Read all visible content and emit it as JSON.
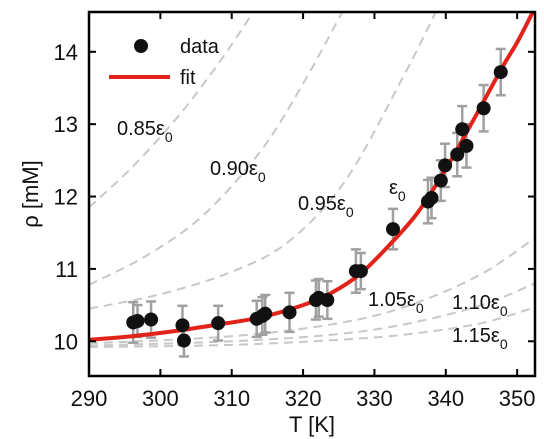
{
  "chart_data": {
    "type": "scatter",
    "xlabel": "T [K]",
    "ylabel": "ρ [mM]",
    "xlim": [
      290,
      352.5
    ],
    "ylim": [
      9.52,
      14.55
    ],
    "xticks": [
      290,
      300,
      310,
      320,
      330,
      340,
      350
    ],
    "yticks": [
      10,
      11,
      12,
      13,
      14
    ],
    "grid": false,
    "legend": {
      "position": "top-left",
      "entries": [
        {
          "label": "data",
          "marker": "circle",
          "color": "#111111"
        },
        {
          "label": "fit",
          "marker": "line",
          "color": "#e2231a"
        }
      ]
    },
    "series": [
      {
        "name": "data",
        "kind": "points-with-error",
        "color": "#111111",
        "error_color": "#999999",
        "points": [
          {
            "x": 296.2,
            "y": 10.26,
            "err": 0.28
          },
          {
            "x": 296.8,
            "y": 10.28,
            "err": 0.22
          },
          {
            "x": 298.7,
            "y": 10.3,
            "err": 0.25
          },
          {
            "x": 303.1,
            "y": 10.22,
            "err": 0.27
          },
          {
            "x": 303.3,
            "y": 10.01,
            "err": 0.22
          },
          {
            "x": 308.1,
            "y": 10.25,
            "err": 0.24
          },
          {
            "x": 313.5,
            "y": 10.31,
            "err": 0.25
          },
          {
            "x": 314.3,
            "y": 10.35,
            "err": 0.26
          },
          {
            "x": 314.7,
            "y": 10.38,
            "err": 0.26
          },
          {
            "x": 318.1,
            "y": 10.4,
            "err": 0.27
          },
          {
            "x": 321.8,
            "y": 10.57,
            "err": 0.27
          },
          {
            "x": 322.2,
            "y": 10.6,
            "err": 0.26
          },
          {
            "x": 323.4,
            "y": 10.57,
            "err": 0.26
          },
          {
            "x": 327.4,
            "y": 10.97,
            "err": 0.3
          },
          {
            "x": 328.1,
            "y": 10.97,
            "err": 0.25
          },
          {
            "x": 332.6,
            "y": 11.55,
            "err": 0.28
          },
          {
            "x": 337.5,
            "y": 11.93,
            "err": 0.3
          },
          {
            "x": 338.0,
            "y": 11.98,
            "err": 0.28
          },
          {
            "x": 339.3,
            "y": 12.22,
            "err": 0.28
          },
          {
            "x": 339.9,
            "y": 12.43,
            "err": 0.3
          },
          {
            "x": 341.6,
            "y": 12.58,
            "err": 0.3
          },
          {
            "x": 342.3,
            "y": 12.93,
            "err": 0.32
          },
          {
            "x": 342.9,
            "y": 12.7,
            "err": 0.3
          },
          {
            "x": 345.3,
            "y": 13.22,
            "err": 0.32
          },
          {
            "x": 347.7,
            "y": 13.72,
            "err": 0.32
          }
        ]
      },
      {
        "name": "fit",
        "kind": "line",
        "color": "#e2231a",
        "x": [
          290,
          296,
          302,
          308,
          314,
          320,
          324,
          328,
          332,
          336,
          340,
          344,
          348,
          350,
          352.2
        ],
        "y": [
          10.02,
          10.07,
          10.14,
          10.23,
          10.33,
          10.5,
          10.67,
          10.93,
          11.32,
          11.77,
          12.38,
          13.08,
          13.8,
          14.13,
          14.55
        ]
      }
    ],
    "reference_curves": [
      {
        "label_base": "0.85ε",
        "label_sub": "0",
        "x": [
          290,
          296,
          302,
          306,
          310,
          313
        ],
        "y": [
          11.85,
          12.4,
          13.05,
          13.55,
          14.1,
          14.55
        ]
      },
      {
        "label_base": "0.90ε",
        "label_sub": "0",
        "x": [
          290,
          298,
          306,
          314,
          320,
          325.5
        ],
        "y": [
          10.78,
          11.18,
          11.74,
          12.62,
          13.56,
          14.55
        ]
      },
      {
        "label_base": "0.95ε",
        "label_sub": "0",
        "x": [
          290,
          300,
          310,
          318,
          326,
          334,
          338.6
        ],
        "y": [
          10.45,
          10.65,
          10.96,
          11.38,
          12.23,
          13.65,
          14.55
        ]
      },
      {
        "label_base": "1.05ε",
        "label_sub": "0",
        "x": [
          290,
          310,
          325,
          335,
          345,
          352.5
        ],
        "y": [
          9.97,
          10.07,
          10.25,
          10.5,
          10.93,
          11.43
        ]
      },
      {
        "label_base": "1.10ε",
        "label_sub": "0",
        "x": [
          290,
          310,
          325,
          335,
          345,
          352.5
        ],
        "y": [
          9.94,
          10.0,
          10.1,
          10.25,
          10.5,
          10.8
        ]
      },
      {
        "label_base": "1.15ε",
        "label_sub": "0",
        "x": [
          290,
          310,
          325,
          335,
          345,
          352.5
        ],
        "y": [
          9.92,
          9.95,
          10.02,
          10.1,
          10.25,
          10.47
        ]
      }
    ],
    "annotations": [
      {
        "base": "0.85ε",
        "sub": "0"
      },
      {
        "base": "0.90ε",
        "sub": "0"
      },
      {
        "base": "0.95ε",
        "sub": "0"
      },
      {
        "base": "ε",
        "sub": "0"
      },
      {
        "base": "1.05ε",
        "sub": "0"
      },
      {
        "base": "1.10ε",
        "sub": "0"
      },
      {
        "base": "1.15ε",
        "sub": "0"
      }
    ]
  }
}
